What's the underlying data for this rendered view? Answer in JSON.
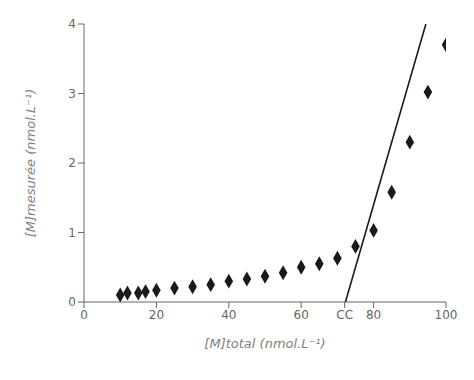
{
  "chart_data": {
    "type": "scatter",
    "x_label": "[M]total (nmol.L⁻¹)",
    "y_label": "[M]mesurée (nmol.L⁻¹)",
    "series": [
      {
        "type": "scatter",
        "color": "#1a1a1a",
        "marker": "diamond",
        "x": [
          10,
          12,
          15,
          17,
          20,
          25,
          30,
          35,
          40,
          45,
          50,
          55,
          60,
          65,
          70,
          75,
          80,
          85,
          90,
          95,
          100
        ],
        "values": [
          0.1,
          0.13,
          0.13,
          0.15,
          0.17,
          0.2,
          0.22,
          0.25,
          0.3,
          0.33,
          0.37,
          0.42,
          0.5,
          0.55,
          0.63,
          0.8,
          1.03,
          1.58,
          2.3,
          3.02,
          3.7
        ]
      },
      {
        "type": "line",
        "color": "#1a1a1a",
        "x": [
          72.22222222222223,
          94.44444444444444
        ],
        "values": [
          0,
          4
        ]
      }
    ],
    "xlim": [
      0,
      100
    ],
    "ylim": [
      0,
      4
    ],
    "xticks": [
      0,
      20,
      40,
      60,
      {
        "value": 72,
        "label": "CC"
      },
      80,
      100
    ],
    "yticks": [
      0,
      1,
      2,
      3,
      4
    ],
    "grid": false
  }
}
